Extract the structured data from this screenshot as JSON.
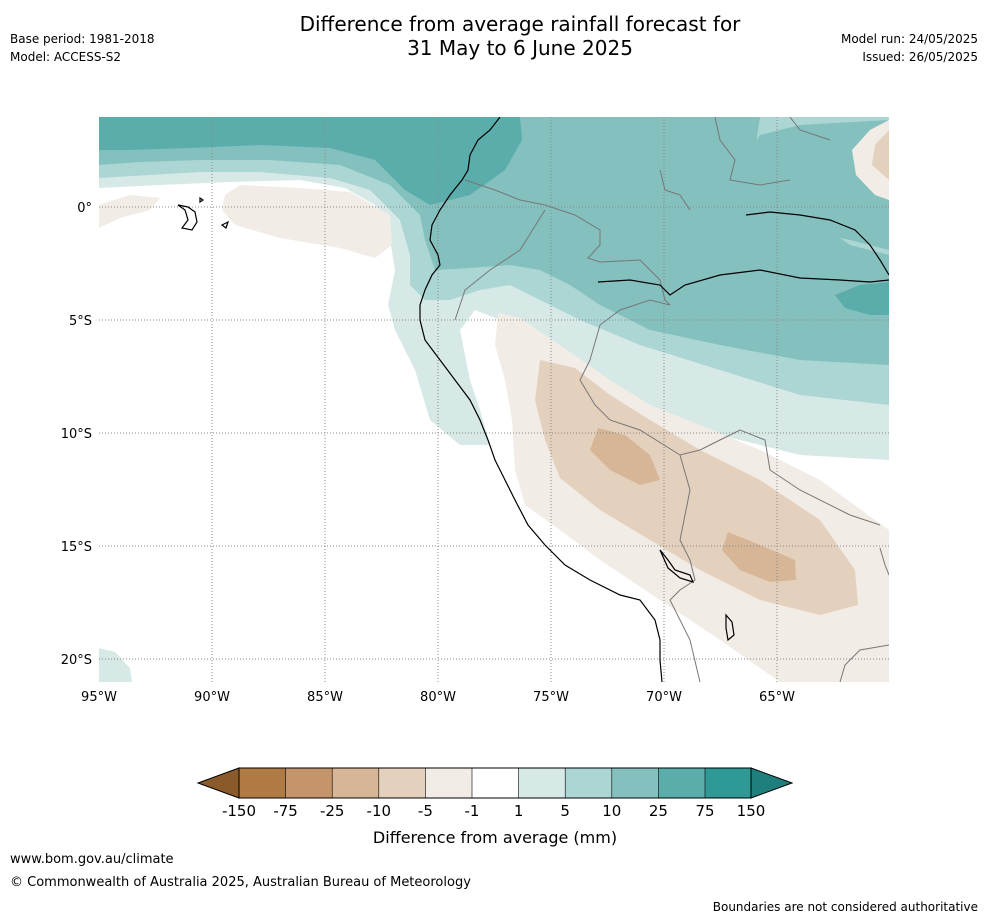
{
  "header": {
    "title_line1": "Difference from average rainfall forecast for",
    "title_line2": "31 May to 6 June 2025",
    "base_period": "Base period: 1981-2018",
    "model": "Model: ACCESS-S2",
    "model_run": "Model run: 24/05/2025",
    "issued": "Issued: 26/05/2025"
  },
  "map": {
    "lat_labels": [
      "0°",
      "5°S",
      "10°S",
      "15°S",
      "20°S"
    ],
    "lon_labels": [
      "95°W",
      "90°W",
      "85°W",
      "80°W",
      "75°W",
      "70°W",
      "65°W"
    ],
    "colors": {
      "dry_150": "#8a5a2a",
      "dry_75": "#b07a45",
      "dry_25": "#c4956b",
      "dry_10": "#d6b696",
      "dry_5": "#e4d1bd",
      "dry_1": "#f2ece6",
      "neutral": "#ffffff",
      "wet_1": "#d6e9e7",
      "wet_5": "#abd6d3",
      "wet_10": "#84c0be",
      "wet_25": "#5aadab",
      "wet_75": "#2f9996",
      "wet_150": "#1f7f7c"
    }
  },
  "colorbar": {
    "ticks": [
      "-150",
      "-75",
      "-25",
      "-10",
      "-5",
      "-1",
      "1",
      "5",
      "10",
      "25",
      "75",
      "150"
    ],
    "label": "Difference from average (mm)"
  },
  "footer": {
    "url": "www.bom.gov.au/climate",
    "copyright": "© Commonwealth of Australia 2025, Australian Bureau of Meteorology",
    "disclaimer": "Boundaries are not considered authoritative"
  }
}
